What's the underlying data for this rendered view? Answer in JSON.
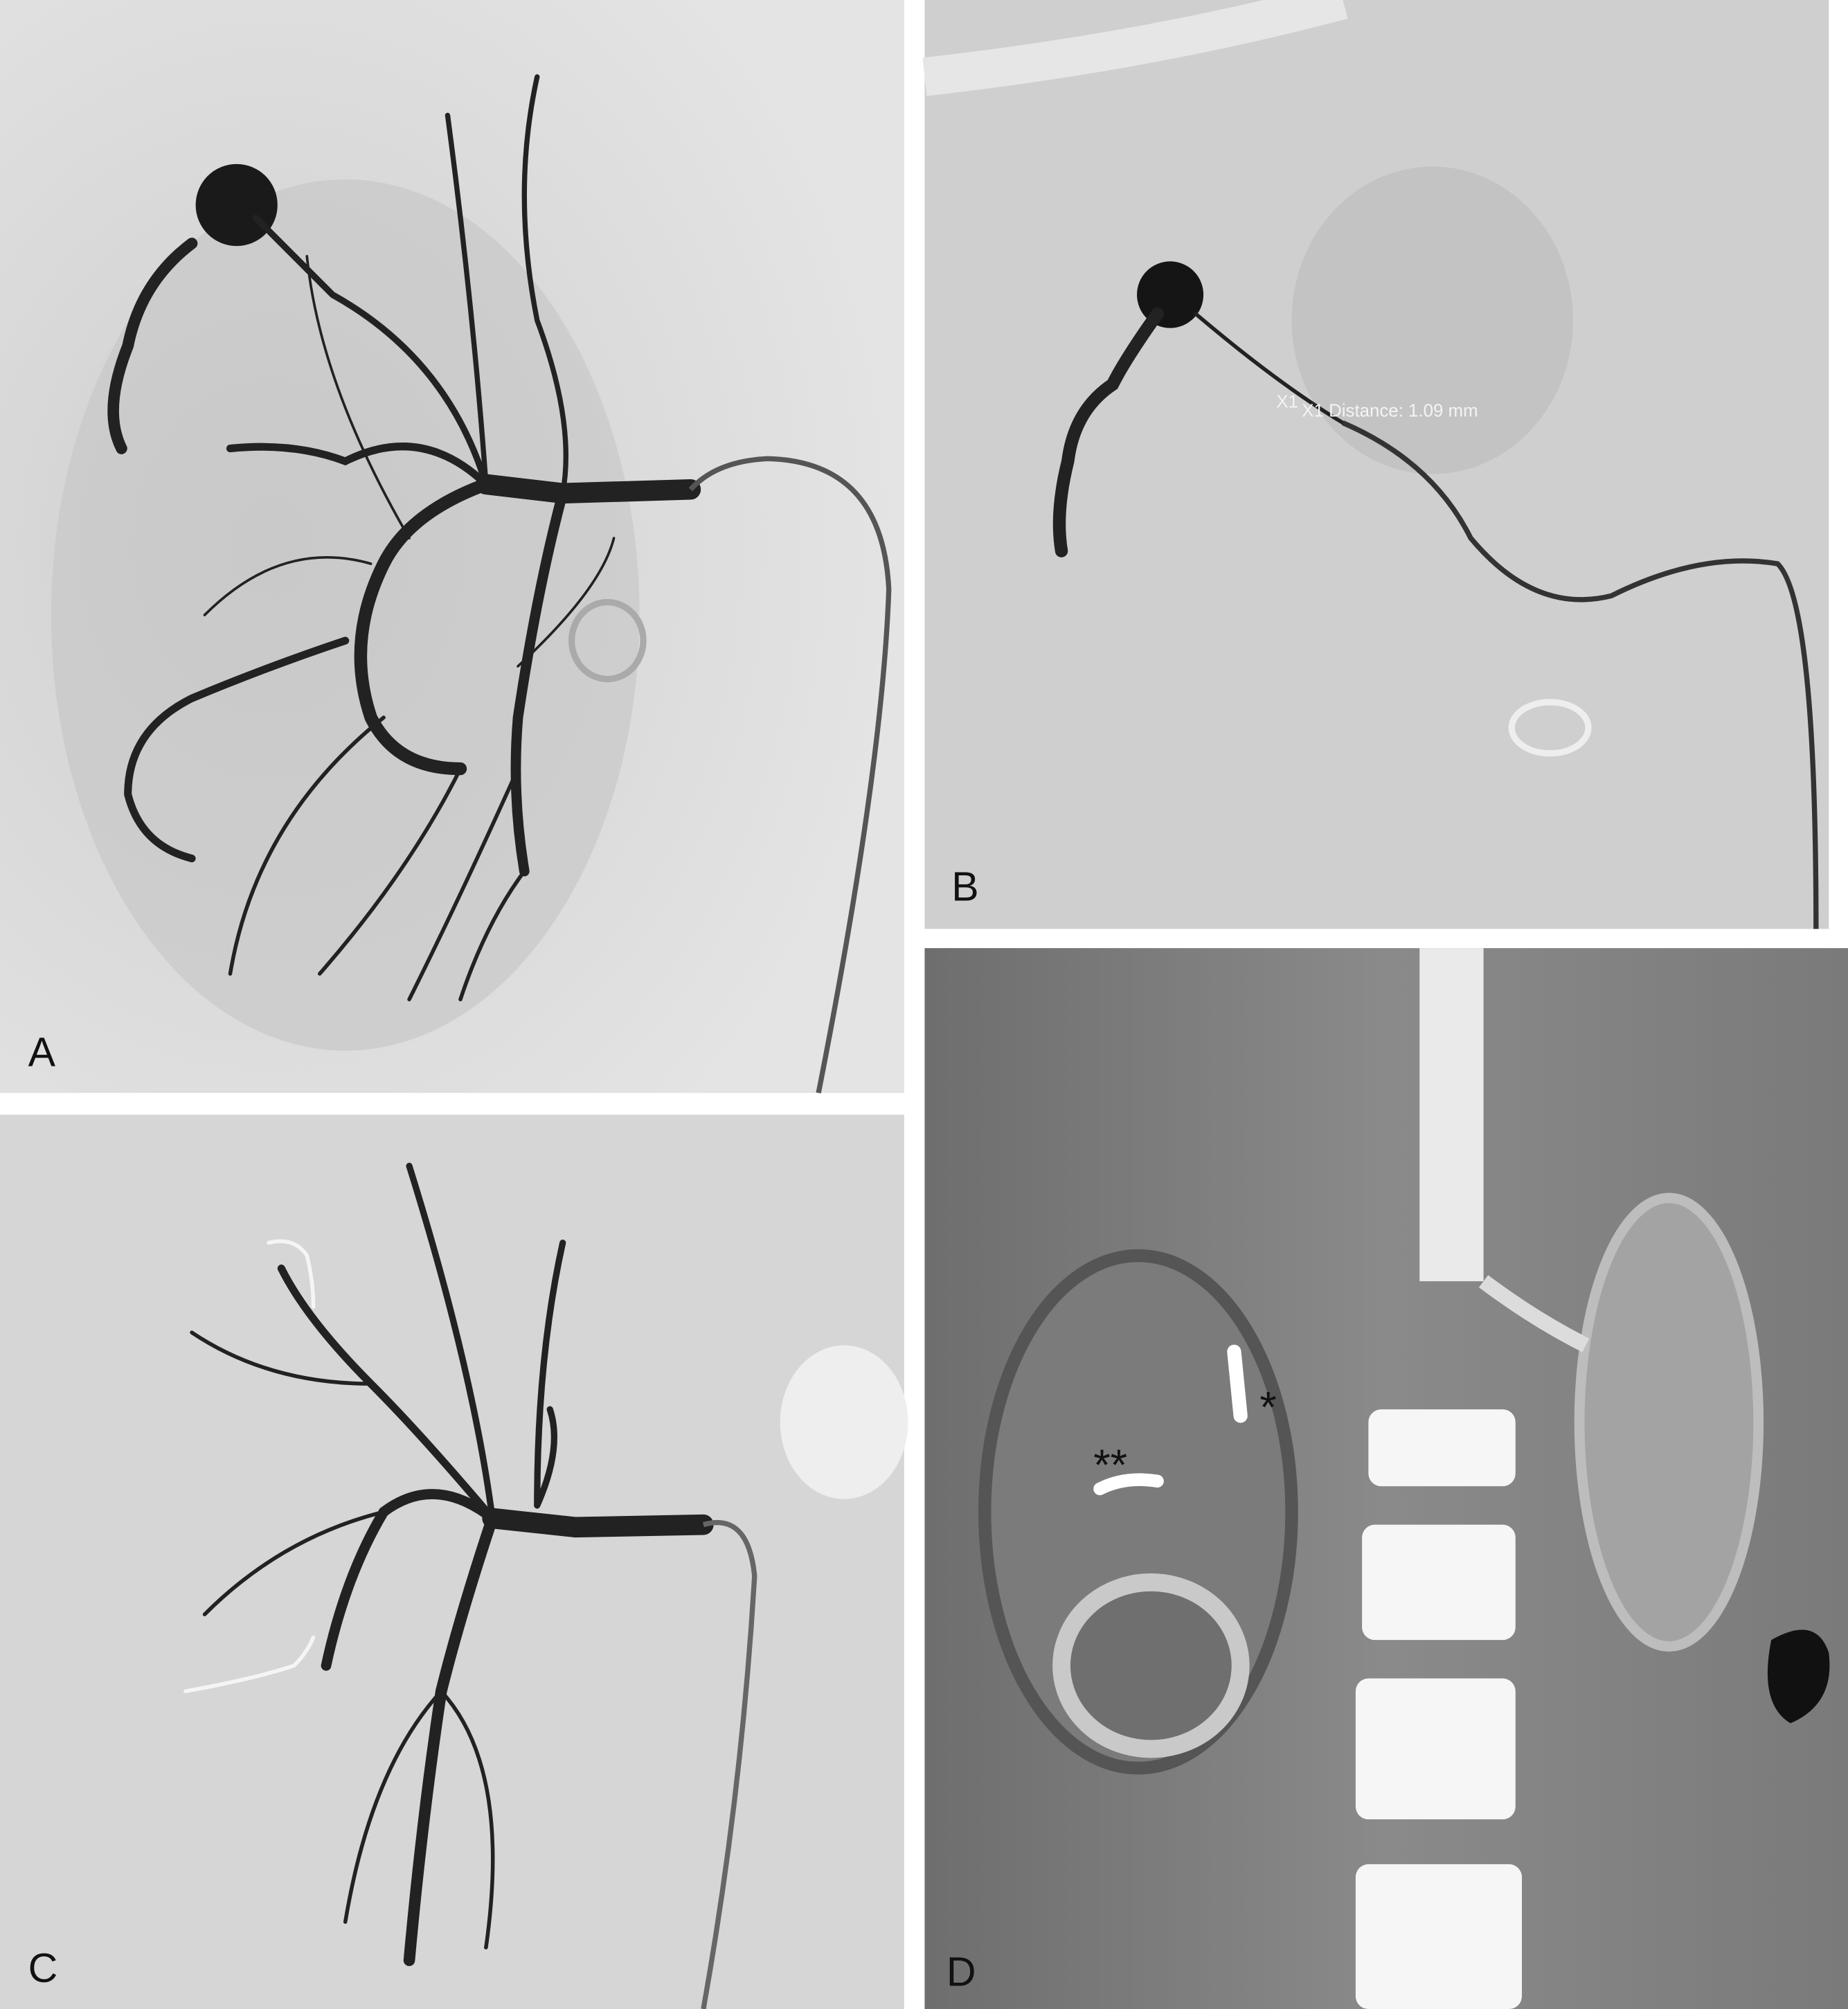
{
  "panels": [
    {
      "label": "A"
    },
    {
      "label": "B",
      "annotation_marker": "X1",
      "annotation": "X1 Distance: 1.09 mm"
    },
    {
      "label": "C"
    },
    {
      "label": "D",
      "markers": [
        "*",
        "**"
      ]
    }
  ]
}
